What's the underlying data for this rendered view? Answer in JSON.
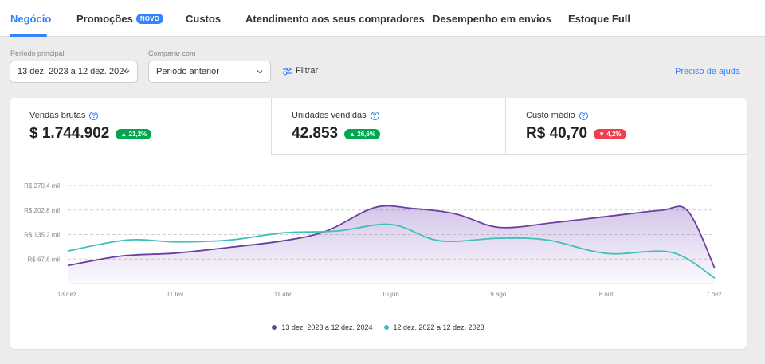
{
  "tabs": [
    {
      "label": "Negócio",
      "active": true
    },
    {
      "label": "Promoções",
      "badge": "NOVO"
    },
    {
      "label": "Custos"
    },
    {
      "label": "Atendimento aos seus compradores"
    },
    {
      "label": "Desempenho em envios"
    },
    {
      "label": "Estoque Full"
    }
  ],
  "filters": {
    "main_period_label": "Período principal",
    "main_period_value": "13 dez. 2023 a 12 dez. 2024",
    "compare_label": "Comparar com",
    "compare_value": "Período anterior",
    "filter_label": "Filtrar",
    "help_link": "Preciso de ajuda"
  },
  "kpis": [
    {
      "title": "Vendas brutas",
      "value": "$ 1.744.902",
      "change": "▲ 21,2%",
      "trend": "up"
    },
    {
      "title": "Unidades vendidas",
      "value": "42.853",
      "change": "▲ 26,6%",
      "trend": "up"
    },
    {
      "title": "Custo médio",
      "value": "R$ 40,70",
      "change": "▼ 4,2%",
      "trend": "down"
    }
  ],
  "colors": {
    "accent": "#3483fa",
    "series_current": "#6b3fa0",
    "series_previous": "#3ec1b8",
    "up": "#00a650",
    "down": "#f23d4f"
  },
  "chart_data": {
    "type": "line",
    "x_ticks": [
      "13 dez.",
      "11 fev.",
      "11 abr.",
      "10 jun.",
      "9 ago.",
      "8 out.",
      "7 dez."
    ],
    "y_ticks": [
      "R$ 67,6 mil",
      "R$ 135,2 mil",
      "R$ 202,8 mil",
      "R$ 270,4 mil"
    ],
    "ylim": [
      0,
      270.4
    ],
    "y_unit": "R$ mil",
    "grid": "horizontal dashed",
    "legend_position": "bottom-center",
    "series": [
      {
        "name": "13 dez. 2023 a 12 dez. 2024",
        "color": "#6b3fa0",
        "filled": true,
        "x": [
          0,
          0.5,
          1,
          1.5,
          2,
          2.4,
          2.85,
          3.2,
          3.6,
          4,
          4.5,
          5,
          5.5,
          5.75,
          6
        ],
        "values": [
          50,
          76,
          84,
          100,
          118,
          145,
          210,
          207,
          192,
          155,
          168,
          185,
          202,
          200,
          42
        ]
      },
      {
        "name": "12 dez. 2022 a 12 dez. 2023",
        "color": "#3ec1b8",
        "filled": false,
        "x": [
          0,
          0.55,
          1,
          1.5,
          2,
          2.5,
          3,
          3.45,
          4,
          4.45,
          5,
          5.6,
          6
        ],
        "values": [
          90,
          120,
          115,
          120,
          140,
          145,
          163,
          118,
          125,
          120,
          83,
          86,
          15
        ]
      }
    ]
  }
}
